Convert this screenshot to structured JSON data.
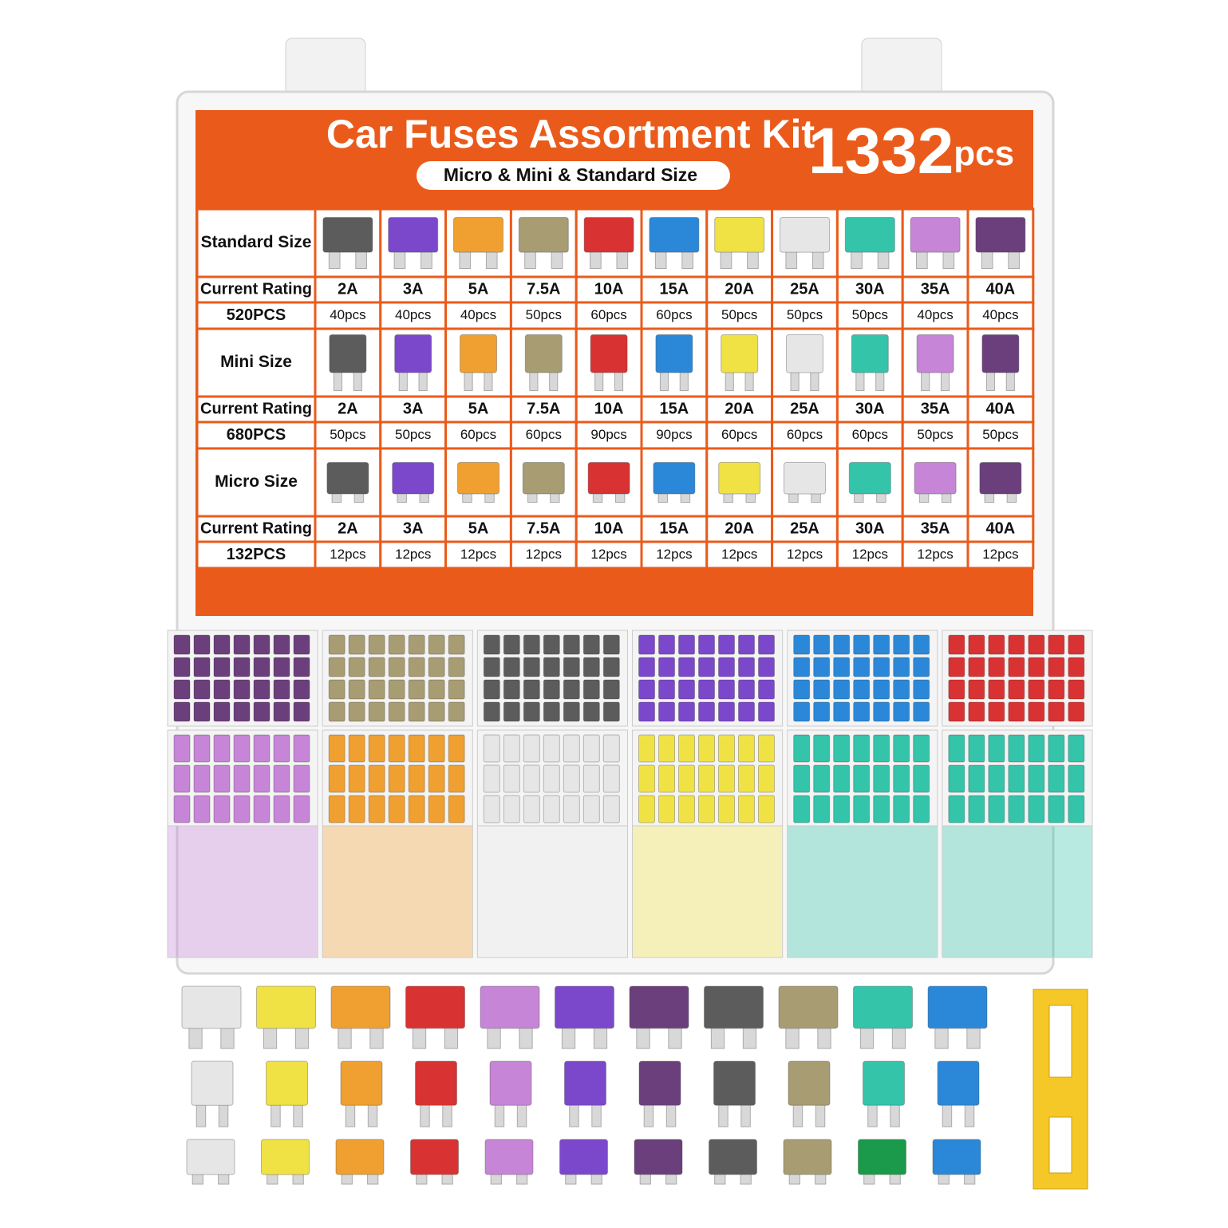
{
  "header": {
    "title": "Car Fuses Assortment Kit",
    "count": "1332",
    "count_unit": "pcs",
    "subtitle": "Micro & Mini & Standard Size"
  },
  "table": {
    "sections": [
      {
        "name": "Standard Size",
        "rating_label": "Current Rating",
        "total": "520PCS",
        "ratings": [
          "2A",
          "3A",
          "5A",
          "7.5A",
          "10A",
          "15A",
          "20A",
          "25A",
          "30A",
          "35A",
          "40A"
        ],
        "counts": [
          "40pcs",
          "40pcs",
          "40pcs",
          "50pcs",
          "60pcs",
          "60pcs",
          "50pcs",
          "50pcs",
          "50pcs",
          "40pcs",
          "40pcs"
        ]
      },
      {
        "name": "Mini Size",
        "rating_label": "Current Rating",
        "total": "680PCS",
        "ratings": [
          "2A",
          "3A",
          "5A",
          "7.5A",
          "10A",
          "15A",
          "20A",
          "25A",
          "30A",
          "35A",
          "40A"
        ],
        "counts": [
          "50pcs",
          "50pcs",
          "60pcs",
          "60pcs",
          "90pcs",
          "90pcs",
          "60pcs",
          "60pcs",
          "60pcs",
          "50pcs",
          "50pcs"
        ]
      },
      {
        "name": "Micro Size",
        "rating_label": "Current Rating",
        "total": "132PCS",
        "ratings": [
          "2A",
          "3A",
          "5A",
          "7.5A",
          "10A",
          "15A",
          "20A",
          "25A",
          "30A",
          "35A",
          "40A"
        ],
        "counts": [
          "12pcs",
          "12pcs",
          "12pcs",
          "12pcs",
          "12pcs",
          "12pcs",
          "12pcs",
          "12pcs",
          "12pcs",
          "12pcs",
          "12pcs"
        ]
      }
    ]
  }
}
